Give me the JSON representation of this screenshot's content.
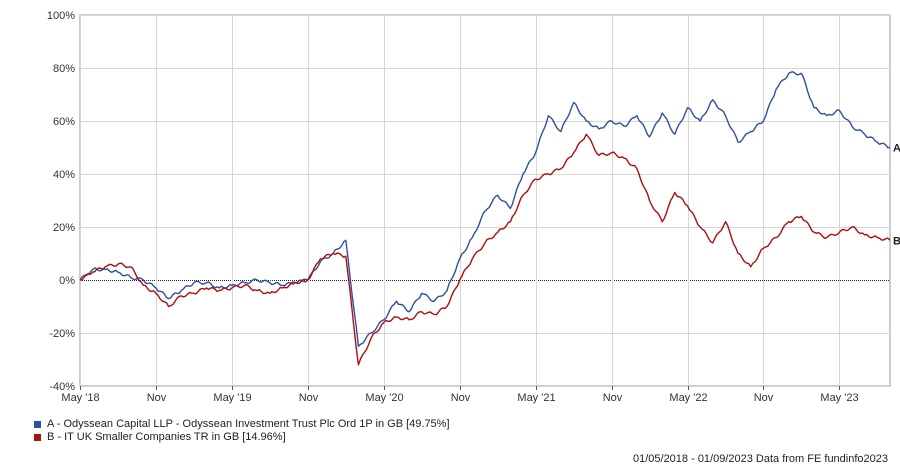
{
  "chart_data": {
    "type": "line",
    "title": "",
    "xlabel": "",
    "ylabel": "",
    "y_unit": "%",
    "ylim": [
      -40,
      100
    ],
    "y_ticks": [
      -40,
      -20,
      0,
      20,
      40,
      60,
      80,
      100
    ],
    "y_tick_labels": [
      "-40%",
      "-20%",
      "0%",
      "20%",
      "40%",
      "60%",
      "80%",
      "100%"
    ],
    "x_range": [
      "2018-05",
      "2023-09"
    ],
    "x_ticks": [
      {
        "date": "2018-05",
        "label": "May '18"
      },
      {
        "date": "2018-11",
        "label": "Nov"
      },
      {
        "date": "2019-05",
        "label": "May '19"
      },
      {
        "date": "2019-11",
        "label": "Nov"
      },
      {
        "date": "2020-05",
        "label": "May '20"
      },
      {
        "date": "2020-11",
        "label": "Nov"
      },
      {
        "date": "2021-05",
        "label": "May '21"
      },
      {
        "date": "2021-11",
        "label": "Nov"
      },
      {
        "date": "2022-05",
        "label": "May '22"
      },
      {
        "date": "2022-11",
        "label": "Nov"
      },
      {
        "date": "2023-05",
        "label": "May '23"
      }
    ],
    "grid": true,
    "zero_line": true,
    "legend_position": "bottom-left",
    "series": [
      {
        "name": "A - Odyssean Capital LLP - Odyssean Investment Trust Plc Ord 1P in GB [49.75%]",
        "end_label": "A",
        "color": "#2e4fa3",
        "points": [
          [
            "2018-05",
            0
          ],
          [
            "2018-06",
            4
          ],
          [
            "2018-07",
            4
          ],
          [
            "2018-08",
            3
          ],
          [
            "2018-09",
            1
          ],
          [
            "2018-10",
            0
          ],
          [
            "2018-11",
            -3
          ],
          [
            "2018-12",
            -7
          ],
          [
            "2019-01",
            -4
          ],
          [
            "2019-02",
            -1
          ],
          [
            "2019-03",
            -1
          ],
          [
            "2019-04",
            -3
          ],
          [
            "2019-05",
            -2
          ],
          [
            "2019-06",
            -1
          ],
          [
            "2019-07",
            0
          ],
          [
            "2019-08",
            -1
          ],
          [
            "2019-09",
            -2
          ],
          [
            "2019-10",
            -1
          ],
          [
            "2019-11",
            0
          ],
          [
            "2019-12",
            7
          ],
          [
            "2020-01",
            10
          ],
          [
            "2020-02",
            15
          ],
          [
            "2020-03",
            -25
          ],
          [
            "2020-04",
            -20
          ],
          [
            "2020-05",
            -15
          ],
          [
            "2020-06",
            -8
          ],
          [
            "2020-07",
            -12
          ],
          [
            "2020-08",
            -5
          ],
          [
            "2020-09",
            -8
          ],
          [
            "2020-10",
            -4
          ],
          [
            "2020-11",
            8
          ],
          [
            "2020-12",
            16
          ],
          [
            "2021-01",
            26
          ],
          [
            "2021-02",
            32
          ],
          [
            "2021-03",
            27
          ],
          [
            "2021-04",
            40
          ],
          [
            "2021-05",
            48
          ],
          [
            "2021-06",
            62
          ],
          [
            "2021-07",
            56
          ],
          [
            "2021-08",
            67
          ],
          [
            "2021-09",
            60
          ],
          [
            "2021-10",
            57
          ],
          [
            "2021-11",
            60
          ],
          [
            "2021-12",
            58
          ],
          [
            "2022-01",
            62
          ],
          [
            "2022-02",
            54
          ],
          [
            "2022-03",
            63
          ],
          [
            "2022-04",
            55
          ],
          [
            "2022-05",
            65
          ],
          [
            "2022-06",
            60
          ],
          [
            "2022-07",
            68
          ],
          [
            "2022-08",
            62
          ],
          [
            "2022-09",
            52
          ],
          [
            "2022-10",
            56
          ],
          [
            "2022-11",
            60
          ],
          [
            "2022-12",
            72
          ],
          [
            "2023-01",
            78
          ],
          [
            "2023-02",
            78
          ],
          [
            "2023-03",
            65
          ],
          [
            "2023-04",
            62
          ],
          [
            "2023-05",
            64
          ],
          [
            "2023-06",
            58
          ],
          [
            "2023-07",
            55
          ],
          [
            "2023-08",
            52
          ],
          [
            "2023-09",
            50
          ]
        ]
      },
      {
        "name": "B - IT UK Smaller Companies TR in GB [14.96%]",
        "end_label": "B",
        "color": "#b00d0d",
        "points": [
          [
            "2018-05",
            0
          ],
          [
            "2018-06",
            3
          ],
          [
            "2018-07",
            5
          ],
          [
            "2018-08",
            6
          ],
          [
            "2018-09",
            5
          ],
          [
            "2018-10",
            -2
          ],
          [
            "2018-11",
            -5
          ],
          [
            "2018-12",
            -10
          ],
          [
            "2019-01",
            -6
          ],
          [
            "2019-02",
            -5
          ],
          [
            "2019-03",
            -3
          ],
          [
            "2019-04",
            -4
          ],
          [
            "2019-05",
            -3
          ],
          [
            "2019-06",
            -2
          ],
          [
            "2019-07",
            -4
          ],
          [
            "2019-08",
            -5
          ],
          [
            "2019-09",
            -3
          ],
          [
            "2019-10",
            -1
          ],
          [
            "2019-11",
            0
          ],
          [
            "2019-12",
            8
          ],
          [
            "2020-01",
            10
          ],
          [
            "2020-02",
            9
          ],
          [
            "2020-03",
            -32
          ],
          [
            "2020-04",
            -22
          ],
          [
            "2020-05",
            -16
          ],
          [
            "2020-06",
            -14
          ],
          [
            "2020-07",
            -15
          ],
          [
            "2020-08",
            -12
          ],
          [
            "2020-09",
            -13
          ],
          [
            "2020-10",
            -10
          ],
          [
            "2020-11",
            0
          ],
          [
            "2020-12",
            8
          ],
          [
            "2021-01",
            14
          ],
          [
            "2021-02",
            18
          ],
          [
            "2021-03",
            22
          ],
          [
            "2021-04",
            32
          ],
          [
            "2021-05",
            38
          ],
          [
            "2021-06",
            40
          ],
          [
            "2021-07",
            42
          ],
          [
            "2021-08",
            48
          ],
          [
            "2021-09",
            55
          ],
          [
            "2021-10",
            47
          ],
          [
            "2021-11",
            48
          ],
          [
            "2021-12",
            46
          ],
          [
            "2022-01",
            42
          ],
          [
            "2022-02",
            30
          ],
          [
            "2022-03",
            22
          ],
          [
            "2022-04",
            33
          ],
          [
            "2022-05",
            28
          ],
          [
            "2022-06",
            20
          ],
          [
            "2022-07",
            14
          ],
          [
            "2022-08",
            22
          ],
          [
            "2022-09",
            10
          ],
          [
            "2022-10",
            5
          ],
          [
            "2022-11",
            12
          ],
          [
            "2022-12",
            16
          ],
          [
            "2023-01",
            22
          ],
          [
            "2023-02",
            24
          ],
          [
            "2023-03",
            18
          ],
          [
            "2023-04",
            16
          ],
          [
            "2023-05",
            18
          ],
          [
            "2023-06",
            20
          ],
          [
            "2023-07",
            17
          ],
          [
            "2023-08",
            16
          ],
          [
            "2023-09",
            15
          ]
        ]
      }
    ]
  },
  "footer": "01/05/2018 - 01/09/2023 Data from FE fundinfo2023"
}
